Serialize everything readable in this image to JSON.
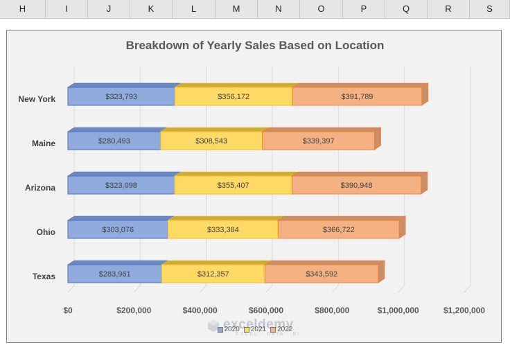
{
  "columns": [
    "H",
    "I",
    "J",
    "K",
    "L",
    "M",
    "N",
    "O",
    "P",
    "Q",
    "R",
    "S"
  ],
  "watermark": {
    "name": "exceldemy",
    "tagline": "EXCEL · DATA · BI"
  },
  "colors": {
    "2020": "#8faadc",
    "2021": "#ffd966",
    "2022": "#f4b183",
    "2020_top": "#6f89ba",
    "2021_top": "#c9aa45",
    "2022_top": "#c98e6a",
    "2020_stroke": "#4472c4",
    "2021_stroke": "#ffc000",
    "2022_stroke": "#ed7d31"
  },
  "chart_data": {
    "type": "bar",
    "orientation": "horizontal",
    "stacked": true,
    "three_d": true,
    "title": "Breakdown of Yearly Sales Based on Location",
    "categories": [
      "New York",
      "Maine",
      "Arizona",
      "Ohio",
      "Texas"
    ],
    "series": [
      {
        "name": "2020",
        "values": [
          323793,
          280493,
          323098,
          303076,
          283961
        ],
        "labels": [
          "$323,793",
          "$280,493",
          "$323,098",
          "$303,076",
          "$283,961"
        ]
      },
      {
        "name": "2021",
        "values": [
          356172,
          308543,
          355407,
          333384,
          312357
        ],
        "labels": [
          "$356,172",
          "$308,543",
          "$355,407",
          "$333,384",
          "$312,357"
        ]
      },
      {
        "name": "2022",
        "values": [
          391789,
          339397,
          390948,
          366722,
          343592
        ],
        "labels": [
          "$391,789",
          "$339,397",
          "$390,948",
          "$366,722",
          "$343,592"
        ]
      }
    ],
    "xlim": [
      0,
      1200000
    ],
    "x_ticks": [
      0,
      200000,
      400000,
      600000,
      800000,
      1000000,
      1200000
    ],
    "x_tick_labels": [
      "$0",
      "$200,000",
      "$400,000",
      "$600,000",
      "$800,000",
      "$1,000,000",
      "$1,200,000"
    ],
    "grid": true,
    "legend": "bottom"
  }
}
